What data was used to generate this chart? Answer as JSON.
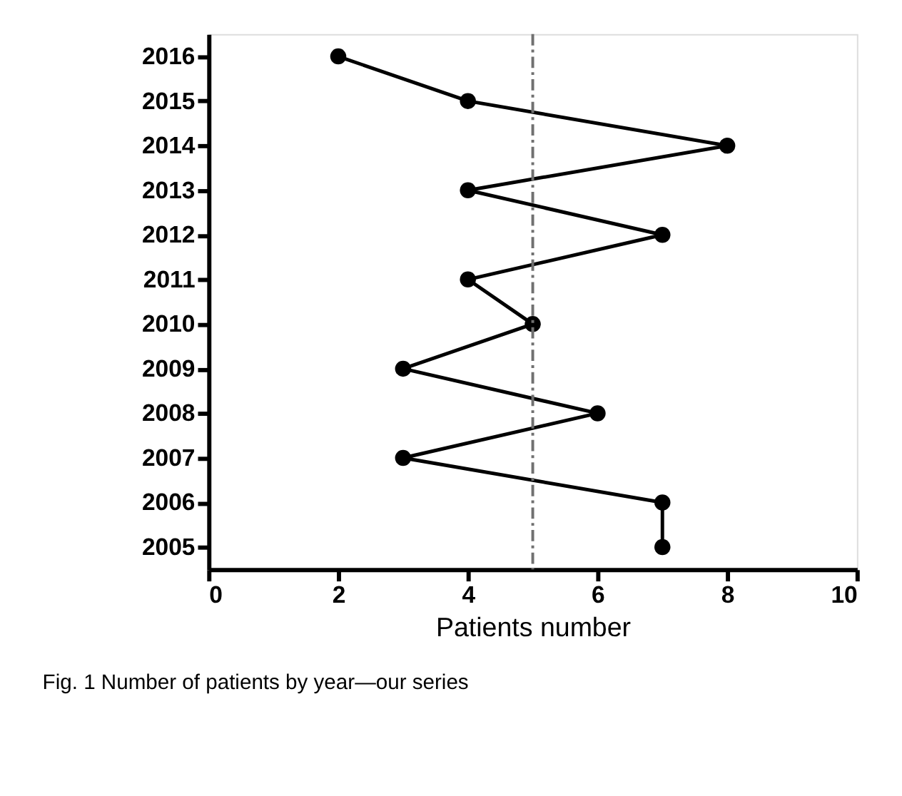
{
  "chart_data": {
    "type": "line",
    "orientation": "horizontal",
    "xlabel": "Patients number",
    "categories": [
      "2016",
      "2015",
      "2014",
      "2013",
      "2012",
      "2011",
      "2010",
      "2009",
      "2008",
      "2007",
      "2006",
      "2005"
    ],
    "series": [
      {
        "color": "#000000",
        "values": [
          2,
          4,
          8,
          4,
          7,
          4,
          5,
          3,
          6,
          3,
          7,
          7
        ]
      }
    ],
    "xlim": [
      0,
      10
    ],
    "xticks": [
      0,
      2,
      4,
      6,
      8,
      10
    ],
    "marker": "circle",
    "line_style": "solid",
    "ref_lines": [
      {
        "axis": "x",
        "value": 5,
        "color": "#707070",
        "line_style": "dashed"
      }
    ],
    "annotations": [
      "Fig. 1 Number of patients by year—our series"
    ]
  }
}
